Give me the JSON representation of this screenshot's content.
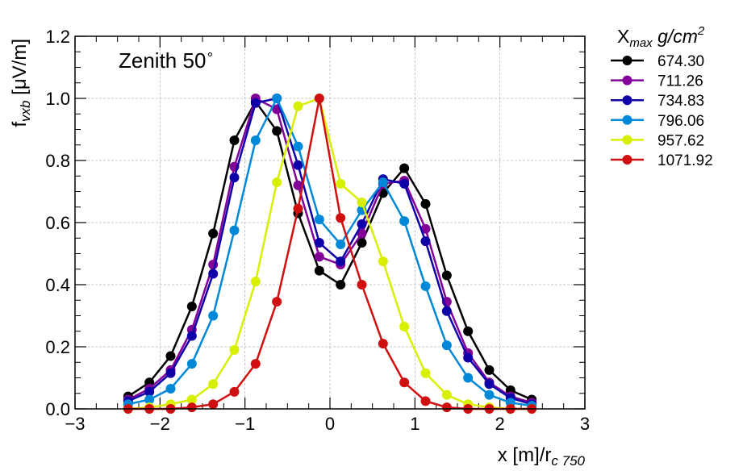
{
  "chart_data": {
    "type": "line",
    "annotation": "Zenith 50",
    "annotation_symbol": "∘",
    "xlabel": {
      "main": "x [m]/r",
      "sub": "c 750"
    },
    "ylabel": {
      "main": "f",
      "sub": "vxb",
      "rest": " [μV/m]"
    },
    "legend_title": {
      "main": "X",
      "sub": "max",
      "rest": " g/cm",
      "sup": "2"
    },
    "legend_position": "right-outside",
    "xlim": [
      -3,
      3
    ],
    "ylim": [
      0,
      1.2
    ],
    "xticks": [
      -3,
      -2,
      -1,
      0,
      1,
      2,
      3
    ],
    "xtick_labels": [
      "−3",
      "−2",
      "−1",
      "0",
      "1",
      "2",
      "3"
    ],
    "yticks": [
      0,
      0.2,
      0.4,
      0.6,
      0.8,
      1.0,
      1.2
    ],
    "ytick_labels": [
      "0.0",
      "0.2",
      "0.4",
      "0.6",
      "0.8",
      "1.0",
      "1.2"
    ],
    "grid": true,
    "x": [
      -2.375,
      -2.125,
      -1.875,
      -1.625,
      -1.375,
      -1.125,
      -0.875,
      -0.625,
      -0.375,
      -0.125,
      0.125,
      0.375,
      0.625,
      0.875,
      1.125,
      1.375,
      1.625,
      1.875,
      2.125,
      2.375
    ],
    "series": [
      {
        "name": "674.30",
        "color": "#000000",
        "values": [
          0.04,
          0.085,
          0.17,
          0.33,
          0.565,
          0.865,
          0.99,
          0.895,
          0.63,
          0.445,
          0.4,
          0.535,
          0.695,
          0.775,
          0.66,
          0.43,
          0.25,
          0.125,
          0.06,
          0.03
        ]
      },
      {
        "name": "711.26",
        "color": "#800098",
        "values": [
          0.03,
          0.065,
          0.125,
          0.255,
          0.465,
          0.78,
          1.0,
          0.965,
          0.72,
          0.49,
          0.465,
          0.565,
          0.725,
          0.735,
          0.58,
          0.345,
          0.18,
          0.085,
          0.04,
          0.02
        ]
      },
      {
        "name": "734.83",
        "color": "#1000a8",
        "values": [
          0.025,
          0.055,
          0.115,
          0.235,
          0.435,
          0.745,
          0.985,
          1.0,
          0.785,
          0.535,
          0.475,
          0.595,
          0.74,
          0.725,
          0.54,
          0.315,
          0.165,
          0.08,
          0.035,
          0.015
        ]
      },
      {
        "name": "796.06",
        "color": "#0088d8",
        "values": [
          0.015,
          0.03,
          0.065,
          0.145,
          0.3,
          0.575,
          0.865,
          1.0,
          0.845,
          0.61,
          0.53,
          0.64,
          0.73,
          0.605,
          0.395,
          0.205,
          0.1,
          0.045,
          0.02,
          0.01
        ]
      },
      {
        "name": "957.62",
        "color": "#d8f000",
        "values": [
          0.0,
          0.005,
          0.015,
          0.03,
          0.08,
          0.19,
          0.41,
          0.73,
          0.975,
          1.0,
          0.725,
          0.665,
          0.475,
          0.265,
          0.115,
          0.045,
          0.015,
          0.005,
          0.0,
          0.0
        ]
      },
      {
        "name": "1071.92",
        "color": "#d01010",
        "values": [
          0.0,
          0.0,
          0.0,
          0.005,
          0.015,
          0.055,
          0.145,
          0.345,
          0.645,
          1.0,
          0.615,
          0.4,
          0.21,
          0.085,
          0.025,
          0.005,
          0.0,
          0.0,
          0.0,
          0.0
        ]
      }
    ]
  }
}
